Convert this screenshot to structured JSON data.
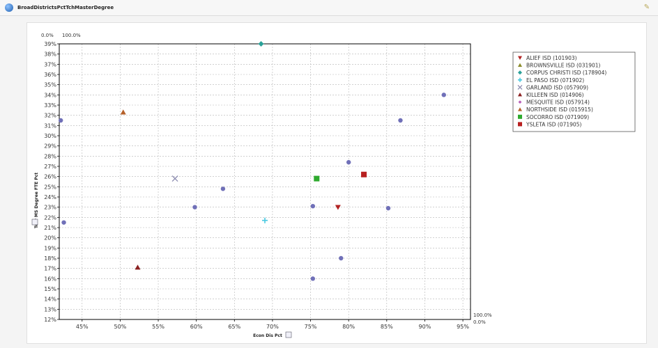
{
  "window": {
    "title": "BroadDistrictsPctTchMasterDegree"
  },
  "colors": {
    "grid": "#b5b5b5",
    "frame": "#000000",
    "background": "#ffffff",
    "default_point": "#7070b8"
  },
  "corner_labels": {
    "top_left_y": "0.0%",
    "top_left_x": "100.0%",
    "bottom_right_y": "100.0%",
    "bottom_right_x": "0.0%"
  },
  "chart_data": {
    "type": "scatter",
    "xlabel": "Econ Dis Pct",
    "ylabel": "Tchr MS Degree FTE Pct",
    "xlim": [
      42,
      96
    ],
    "ylim": [
      12,
      39
    ],
    "x_ticks": [
      "45%",
      "50%",
      "55%",
      "60%",
      "65%",
      "70%",
      "75%",
      "80%",
      "85%",
      "90%",
      "95%"
    ],
    "x_tick_values": [
      45,
      50,
      55,
      60,
      65,
      70,
      75,
      80,
      85,
      90,
      95
    ],
    "y_ticks": [
      "12%",
      "13%",
      "14%",
      "15%",
      "16%",
      "17%",
      "18%",
      "19%",
      "20%",
      "21%",
      "22%",
      "23%",
      "24%",
      "25%",
      "26%",
      "27%",
      "28%",
      "29%",
      "30%",
      "31%",
      "32%",
      "33%",
      "34%",
      "35%",
      "36%",
      "37%",
      "38%",
      "39%"
    ],
    "y_tick_values": [
      12,
      13,
      14,
      15,
      16,
      17,
      18,
      19,
      20,
      21,
      22,
      23,
      24,
      25,
      26,
      27,
      28,
      29,
      30,
      31,
      32,
      33,
      34,
      35,
      36,
      37,
      38,
      39
    ],
    "grid": true,
    "legend_position": "right",
    "series": [
      {
        "name": "ALIEF ISD (101903)",
        "marker": "triangle-down",
        "color": "#b22222",
        "points": [
          {
            "x": 78.6,
            "y": 23.0
          }
        ]
      },
      {
        "name": "BROWNSVILLE ISD (031901)",
        "marker": "triangle",
        "color": "#8b8b2a",
        "points": []
      },
      {
        "name": "CORPUS CHRISTI ISD (178904)",
        "marker": "diamond",
        "color": "#2aa198",
        "points": [
          {
            "x": 68.5,
            "y": 39.0
          }
        ]
      },
      {
        "name": "EL PASO ISD (071902)",
        "marker": "plus",
        "color": "#48c8e0",
        "points": [
          {
            "x": 69.0,
            "y": 21.7
          }
        ]
      },
      {
        "name": "GARLAND ISD (057909)",
        "marker": "cross",
        "color": "#8c8cb0",
        "points": [
          {
            "x": 57.2,
            "y": 25.8
          }
        ]
      },
      {
        "name": "KILLEEN ISD (014906)",
        "marker": "triangle",
        "color": "#8b2020",
        "points": [
          {
            "x": 52.3,
            "y": 17.1
          }
        ]
      },
      {
        "name": "MESQUITE ISD (057914)",
        "marker": "diamond-small",
        "color": "#b85cb8",
        "points": []
      },
      {
        "name": "NORTHSIDE ISD (015915)",
        "marker": "triangle",
        "color": "#b5602a",
        "points": [
          {
            "x": 50.4,
            "y": 32.3
          }
        ]
      },
      {
        "name": "SOCORRO ISD (071909)",
        "marker": "square",
        "color": "#2eaa2e",
        "points": [
          {
            "x": 75.8,
            "y": 25.8
          }
        ]
      },
      {
        "name": "YSLETA ISD (071905)",
        "marker": "square",
        "color": "#b82020",
        "points": [
          {
            "x": 82.0,
            "y": 26.2
          }
        ]
      }
    ],
    "unlabeled_points": [
      {
        "x": 42.2,
        "y": 31.5
      },
      {
        "x": 42.6,
        "y": 21.5
      },
      {
        "x": 59.8,
        "y": 23.0
      },
      {
        "x": 63.5,
        "y": 24.8
      },
      {
        "x": 75.3,
        "y": 23.1
      },
      {
        "x": 75.3,
        "y": 16.0
      },
      {
        "x": 79.0,
        "y": 18.0
      },
      {
        "x": 80.0,
        "y": 27.4
      },
      {
        "x": 85.2,
        "y": 22.9
      },
      {
        "x": 86.8,
        "y": 31.5
      },
      {
        "x": 92.5,
        "y": 34.0
      }
    ]
  }
}
